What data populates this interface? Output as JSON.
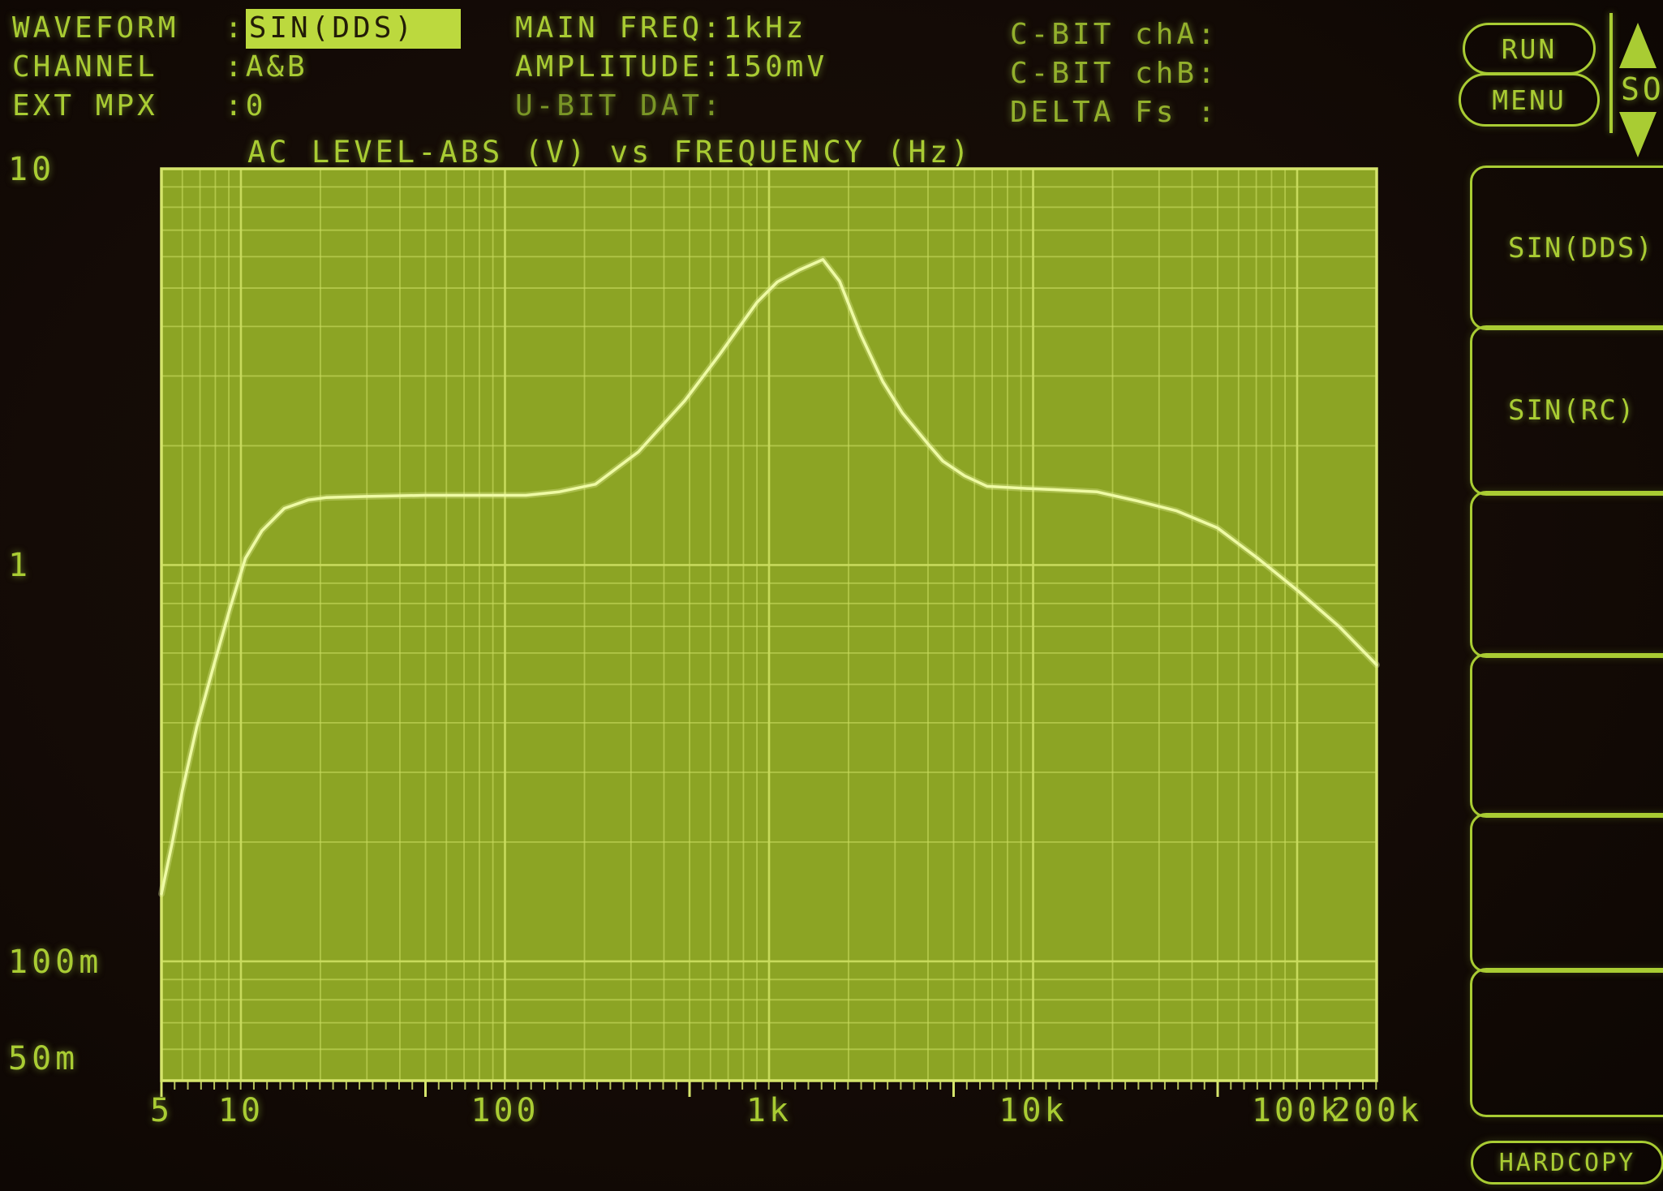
{
  "header": {
    "left_rows": [
      {
        "label": "WAVEFORM",
        "colon": ":",
        "value": "SIN(DDS)"
      },
      {
        "label": "CHANNEL",
        "colon": ":",
        "value": "A&B"
      },
      {
        "label": "EXT MPX",
        "colon": ":",
        "value": "0"
      }
    ],
    "center_rows": [
      {
        "label": "MAIN FREQ:",
        "value": "1kHz"
      },
      {
        "label": "AMPLITUDE:",
        "value": "150mV"
      },
      {
        "label": "U-BIT DAT:",
        "value": ""
      }
    ],
    "right_rows": [
      {
        "label": "C-BIT chA:",
        "value": ""
      },
      {
        "label": "C-BIT chB:",
        "value": ""
      },
      {
        "label": "DELTA Fs :",
        "value": ""
      }
    ]
  },
  "sidebar": {
    "run_label": "RUN",
    "menu_label": "MENU",
    "selector_label": "SO",
    "softkeys": [
      {
        "label": "SIN(DDS)"
      },
      {
        "label": "SIN(RC)"
      },
      {
        "label": ""
      },
      {
        "label": ""
      },
      {
        "label": ""
      },
      {
        "label": ""
      }
    ],
    "hardcopy_label": "HARDCOPY"
  },
  "chart_data": {
    "type": "line",
    "title": "AC LEVEL-ABS (V) vs FREQUENCY (Hz)",
    "xlabel": "FREQUENCY (Hz)",
    "ylabel": "AC LEVEL-ABS (V)",
    "x_axis": {
      "scale": "log",
      "min": 5,
      "max": 200000,
      "ticks": [
        {
          "label": "5",
          "value": 5
        },
        {
          "label": "10",
          "value": 10
        },
        {
          "label": "100",
          "value": 100
        },
        {
          "label": "1k",
          "value": 1000
        },
        {
          "label": "10k",
          "value": 10000
        },
        {
          "label": "100k",
          "value": 100000
        },
        {
          "label": "200k",
          "value": 200000
        }
      ]
    },
    "y_axis": {
      "scale": "log",
      "min": 0.05,
      "max": 10,
      "ticks": [
        {
          "label": "10",
          "value": 10
        },
        {
          "label": "1",
          "value": 1
        },
        {
          "label": "100m",
          "value": 0.1
        },
        {
          "label": "50m",
          "value": 0.05
        }
      ]
    },
    "grid": true,
    "series": [
      {
        "name": "AC LEVEL-ABS",
        "points": [
          [
            5,
            0.148
          ],
          [
            5.5,
            0.2
          ],
          [
            6,
            0.27
          ],
          [
            6.8,
            0.39
          ],
          [
            7.9,
            0.56
          ],
          [
            9.1,
            0.78
          ],
          [
            10.4,
            1.04
          ],
          [
            12,
            1.22
          ],
          [
            14.6,
            1.39
          ],
          [
            18,
            1.46
          ],
          [
            21,
            1.48
          ],
          [
            30,
            1.49
          ],
          [
            50,
            1.5
          ],
          [
            80,
            1.5
          ],
          [
            120,
            1.5
          ],
          [
            160,
            1.53
          ],
          [
            220,
            1.6
          ],
          [
            320,
            1.93
          ],
          [
            480,
            2.6
          ],
          [
            650,
            3.4
          ],
          [
            900,
            4.6
          ],
          [
            1075,
            5.18
          ],
          [
            1300,
            5.55
          ],
          [
            1600,
            5.9
          ],
          [
            1850,
            5.2
          ],
          [
            2230,
            3.8
          ],
          [
            2700,
            2.9
          ],
          [
            3200,
            2.42
          ],
          [
            4000,
            2.02
          ],
          [
            4550,
            1.83
          ],
          [
            5500,
            1.68
          ],
          [
            6700,
            1.58
          ],
          [
            9500,
            1.56
          ],
          [
            12000,
            1.55
          ],
          [
            17500,
            1.53
          ],
          [
            25000,
            1.45
          ],
          [
            35000,
            1.37
          ],
          [
            50000,
            1.24
          ],
          [
            71000,
            1.04
          ],
          [
            101000,
            0.86
          ],
          [
            144000,
            0.7
          ],
          [
            200000,
            0.56
          ]
        ]
      }
    ]
  },
  "colors": {
    "background": "#140b06",
    "phosphor_text": "#a9cc33",
    "highlight_bg": "#bcd93e",
    "highlight_text": "#231c08",
    "plot_fill": "#8ca424",
    "grid_line": "#cbdd60",
    "plot_border": "#d5e56c",
    "trace": "#eefaa4"
  }
}
